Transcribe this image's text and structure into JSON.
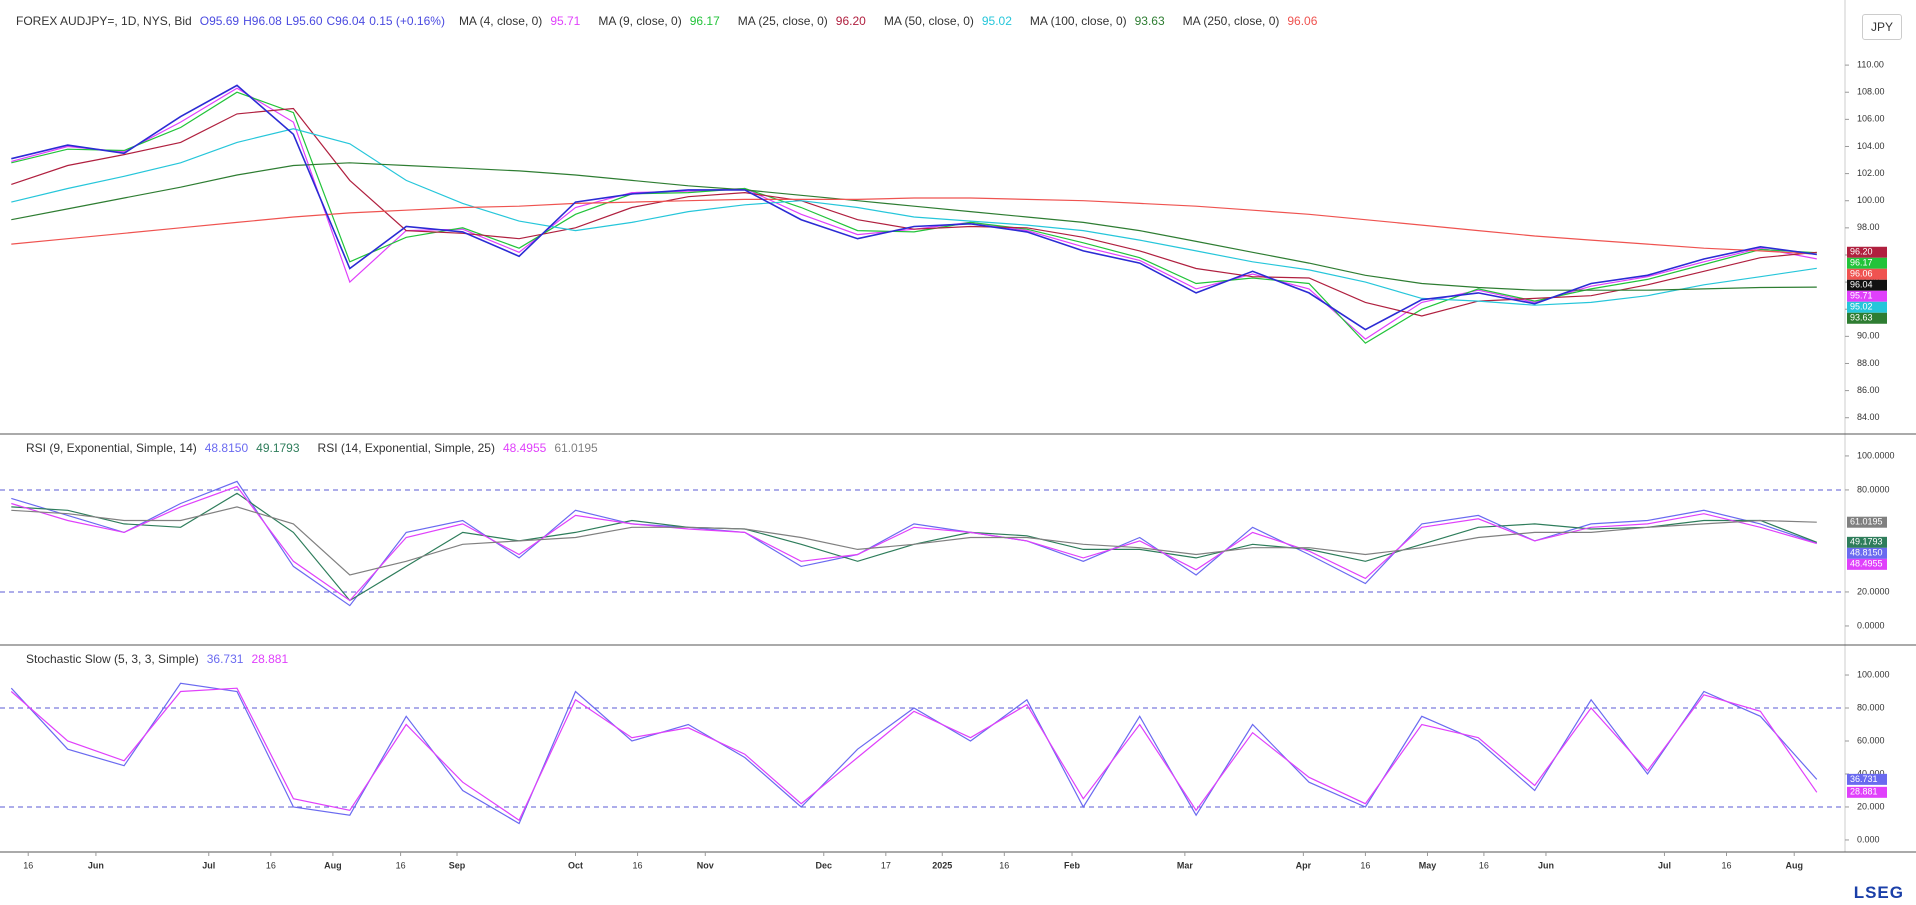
{
  "currency": "JPY",
  "footer": {
    "logo": "LSEG"
  },
  "chart_data": [
    {
      "type": "line",
      "title": "FOREX AUDJPY=, 1D, NYS, Bid",
      "quote": [
        "O95.69",
        "H96.08",
        "L95.60",
        "C96.04",
        "0.15 (+0.16%)"
      ],
      "x": [
        0,
        10,
        20,
        30,
        40,
        50,
        60,
        70,
        80,
        90,
        100,
        110,
        120,
        130,
        140,
        150,
        160,
        170,
        180,
        190,
        200,
        210,
        220,
        230,
        240,
        250,
        260,
        270,
        280,
        290,
        300,
        310,
        320
      ],
      "values": [
        103.1,
        104.1,
        103.5,
        106.2,
        108.5,
        104.9,
        95.0,
        98.1,
        97.7,
        95.9,
        99.9,
        100.5,
        100.8,
        100.8,
        98.6,
        97.2,
        98.1,
        98.3,
        97.7,
        96.3,
        95.4,
        93.2,
        94.8,
        93.2,
        90.5,
        92.7,
        93.2,
        92.4,
        93.9,
        94.5,
        95.7,
        96.6,
        96.04
      ],
      "color": "#2b2bd4",
      "last_value_label": "96.04",
      "xlim": [
        -2,
        325
      ],
      "ylim": [
        82.8,
        114.8
      ],
      "yticks": [
        {
          "value": 110,
          "label": "110.00"
        },
        {
          "value": 108,
          "label": "108.00"
        },
        {
          "value": 106,
          "label": "106.00"
        },
        {
          "value": 104,
          "label": "104.00"
        },
        {
          "value": 102,
          "label": "102.00"
        },
        {
          "value": 100,
          "label": "100.00"
        },
        {
          "value": 98,
          "label": "98.00"
        },
        {
          "value": 96,
          "label": "96.00"
        },
        {
          "value": 94,
          "label": "94.00"
        },
        {
          "value": 92,
          "label": "92.00"
        },
        {
          "value": 90,
          "label": "90.00"
        },
        {
          "value": 88,
          "label": "88.00"
        },
        {
          "value": 86,
          "label": "86.00"
        },
        {
          "value": 84,
          "label": "84.00"
        }
      ],
      "indicators": [
        {
          "name": "MA (4, close, 0)",
          "series": [
            {
              "color": "#e040fb",
              "last_value_label": "95.71",
              "values": [
                102.9,
                104.0,
                103.6,
                105.8,
                108.3,
                105.8,
                94.0,
                97.8,
                97.9,
                96.2,
                99.5,
                100.6,
                100.7,
                100.9,
                99.0,
                97.5,
                97.9,
                98.4,
                97.8,
                96.6,
                95.6,
                93.5,
                94.6,
                93.5,
                89.8,
                92.5,
                93.4,
                92.5,
                93.7,
                94.4,
                95.5,
                96.5,
                95.71
              ]
            }
          ]
        },
        {
          "name": "MA (9, close, 0)",
          "series": [
            {
              "color": "#22c33a",
              "last_value_label": "96.17",
              "values": [
                102.8,
                103.8,
                103.7,
                105.4,
                108.0,
                106.5,
                95.5,
                97.3,
                98.0,
                96.5,
                99.0,
                100.5,
                100.6,
                100.9,
                99.5,
                97.8,
                97.7,
                98.4,
                97.9,
                96.9,
                95.8,
                93.9,
                94.3,
                93.9,
                89.5,
                92.0,
                93.5,
                92.6,
                93.5,
                94.2,
                95.3,
                96.4,
                96.17
              ]
            }
          ]
        },
        {
          "name": "MA (25, close, 0)",
          "series": [
            {
              "color": "#b0203f",
              "last_value_label": "96.20",
              "values": [
                101.2,
                102.6,
                103.4,
                104.3,
                106.4,
                106.8,
                101.5,
                97.8,
                97.6,
                97.2,
                98.0,
                99.5,
                100.3,
                100.6,
                100.0,
                98.6,
                97.9,
                98.1,
                98.0,
                97.3,
                96.3,
                95.0,
                94.4,
                94.3,
                92.5,
                91.5,
                92.6,
                92.8,
                93.0,
                93.8,
                94.8,
                95.8,
                96.2
              ]
            }
          ]
        },
        {
          "name": "MA (50, close, 0)",
          "series": [
            {
              "color": "#26c6da",
              "last_value_label": "95.02",
              "values": [
                99.9,
                100.9,
                101.8,
                102.8,
                104.3,
                105.3,
                104.2,
                101.5,
                99.8,
                98.5,
                97.8,
                98.4,
                99.2,
                99.7,
                100.0,
                99.5,
                98.8,
                98.5,
                98.2,
                97.8,
                97.1,
                96.3,
                95.5,
                94.9,
                94.0,
                92.8,
                92.6,
                92.3,
                92.5,
                93.0,
                93.8,
                94.4,
                95.02
              ]
            }
          ]
        },
        {
          "name": "MA (100, close, 0)",
          "series": [
            {
              "color": "#2e7d32",
              "last_value_label": "93.63",
              "values": [
                98.6,
                99.4,
                100.2,
                101.0,
                101.9,
                102.6,
                102.8,
                102.6,
                102.4,
                102.2,
                101.9,
                101.5,
                101.1,
                100.8,
                100.4,
                100.0,
                99.6,
                99.2,
                98.8,
                98.4,
                97.8,
                97.0,
                96.2,
                95.4,
                94.5,
                93.9,
                93.6,
                93.4,
                93.4,
                93.4,
                93.5,
                93.6,
                93.63
              ]
            }
          ]
        },
        {
          "name": "MA (250, close, 0)",
          "series": [
            {
              "color": "#ef5350",
              "last_value_label": "96.06",
              "values": [
                96.8,
                97.2,
                97.6,
                98.0,
                98.4,
                98.8,
                99.1,
                99.3,
                99.5,
                99.6,
                99.8,
                99.9,
                100.0,
                100.1,
                100.1,
                100.1,
                100.2,
                100.2,
                100.1,
                100.0,
                99.8,
                99.6,
                99.3,
                99.0,
                98.6,
                98.2,
                97.8,
                97.4,
                97.1,
                96.8,
                96.5,
                96.3,
                96.06
              ]
            }
          ]
        }
      ]
    },
    {
      "type": "line",
      "x": [
        0,
        10,
        20,
        30,
        40,
        50,
        60,
        70,
        80,
        90,
        100,
        110,
        120,
        130,
        140,
        150,
        160,
        170,
        180,
        190,
        200,
        210,
        220,
        230,
        240,
        250,
        260,
        270,
        280,
        290,
        300,
        310,
        320
      ],
      "xlim": [
        -2,
        325
      ],
      "ylim": [
        -11.2,
        112.9
      ],
      "yticks": [
        {
          "value": 100,
          "label": "100.0000"
        },
        {
          "value": 80,
          "label": "80.0000"
        },
        {
          "value": 20,
          "label": "20.0000"
        },
        {
          "value": 0,
          "label": "0.0000"
        }
      ],
      "levels": [
        80,
        20
      ],
      "indicators": [
        {
          "name": "RSI (9, Exponential, Simple, 14)",
          "series": [
            {
              "color": "#6a6af0",
              "last_value_label": "48.8150",
              "values": [
                75,
                65,
                55,
                72,
                85,
                35,
                12,
                55,
                62,
                40,
                68,
                60,
                58,
                55,
                35,
                42,
                60,
                55,
                50,
                38,
                52,
                30,
                58,
                42,
                25,
                60,
                65,
                50,
                60,
                62,
                68,
                60,
                48.815
              ]
            },
            {
              "color": "#2e7d5b",
              "last_value_label": "49.1793",
              "values": [
                70,
                68,
                60,
                58,
                78,
                55,
                15,
                35,
                55,
                50,
                55,
                62,
                58,
                57,
                48,
                38,
                48,
                55,
                53,
                45,
                45,
                40,
                48,
                45,
                38,
                48,
                58,
                60,
                57,
                58,
                62,
                62,
                49.1793
              ]
            }
          ]
        },
        {
          "name": "RSI (14, Exponential, Simple, 25)",
          "series": [
            {
              "color": "#e040fb",
              "last_value_label": "48.4955",
              "values": [
                72,
                62,
                55,
                70,
                82,
                38,
                15,
                52,
                60,
                42,
                65,
                60,
                57,
                55,
                38,
                42,
                58,
                55,
                50,
                40,
                50,
                33,
                55,
                44,
                28,
                58,
                63,
                50,
                58,
                60,
                66,
                58,
                48.4955
              ]
            },
            {
              "color": "#808080",
              "last_value_label": "61.0195",
              "values": [
                68,
                66,
                62,
                62,
                70,
                60,
                30,
                38,
                48,
                50,
                52,
                58,
                58,
                57,
                52,
                45,
                48,
                52,
                52,
                48,
                46,
                42,
                46,
                46,
                42,
                46,
                52,
                55,
                55,
                58,
                60,
                62,
                61.0195
              ]
            }
          ]
        }
      ]
    },
    {
      "type": "line",
      "x": [
        0,
        10,
        20,
        30,
        40,
        50,
        60,
        70,
        80,
        90,
        100,
        110,
        120,
        130,
        140,
        150,
        160,
        170,
        180,
        190,
        200,
        210,
        220,
        230,
        240,
        250,
        260,
        270,
        280,
        290,
        300,
        310,
        320
      ],
      "xlim": [
        -2,
        325
      ],
      "ylim": [
        -7.3,
        118.2
      ],
      "yticks": [
        {
          "value": 100,
          "label": "100.000"
        },
        {
          "value": 80,
          "label": "80.000"
        },
        {
          "value": 60,
          "label": "60.000"
        },
        {
          "value": 40,
          "label": "40.000"
        },
        {
          "value": 20,
          "label": "20.000"
        },
        {
          "value": 0,
          "label": "0.000"
        }
      ],
      "levels": [
        80,
        20
      ],
      "xticks": [
        {
          "value": 3,
          "label": "16"
        },
        {
          "value": 15,
          "label": "Jun"
        },
        {
          "value": 35,
          "label": "Jul"
        },
        {
          "value": 46,
          "label": "16"
        },
        {
          "value": 57,
          "label": "Aug"
        },
        {
          "value": 69,
          "label": "16"
        },
        {
          "value": 79,
          "label": "Sep"
        },
        {
          "value": 100,
          "label": "Oct"
        },
        {
          "value": 111,
          "label": "16"
        },
        {
          "value": 123,
          "label": "Nov"
        },
        {
          "value": 144,
          "label": "Dec"
        },
        {
          "value": 155,
          "label": "17"
        },
        {
          "value": 165,
          "label": "2025"
        },
        {
          "value": 176,
          "label": "16"
        },
        {
          "value": 188,
          "label": "Feb"
        },
        {
          "value": 208,
          "label": "Mar"
        },
        {
          "value": 229,
          "label": "Apr"
        },
        {
          "value": 240,
          "label": "16"
        },
        {
          "value": 251,
          "label": "May"
        },
        {
          "value": 261,
          "label": "16"
        },
        {
          "value": 272,
          "label": "Jun"
        },
        {
          "value": 293,
          "label": "Jul"
        },
        {
          "value": 304,
          "label": "16"
        },
        {
          "value": 316,
          "label": "Aug"
        }
      ],
      "indicators": [
        {
          "name": "Stochastic Slow (5, 3, 3, Simple)",
          "series": [
            {
              "color": "#6a6af0",
              "last_value_label": "36.731",
              "values": [
                92,
                55,
                45,
                95,
                90,
                20,
                15,
                75,
                30,
                10,
                90,
                60,
                70,
                50,
                20,
                55,
                80,
                60,
                85,
                20,
                75,
                15,
                70,
                35,
                20,
                75,
                60,
                30,
                85,
                40,
                90,
                75,
                36.731
              ]
            },
            {
              "color": "#e040fb",
              "last_value_label": "28.881",
              "values": [
                90,
                60,
                48,
                90,
                92,
                25,
                18,
                70,
                35,
                12,
                85,
                62,
                68,
                52,
                22,
                50,
                78,
                62,
                82,
                25,
                70,
                18,
                65,
                38,
                22,
                70,
                62,
                33,
                80,
                42,
                88,
                78,
                28.881
              ]
            }
          ]
        }
      ]
    }
  ]
}
